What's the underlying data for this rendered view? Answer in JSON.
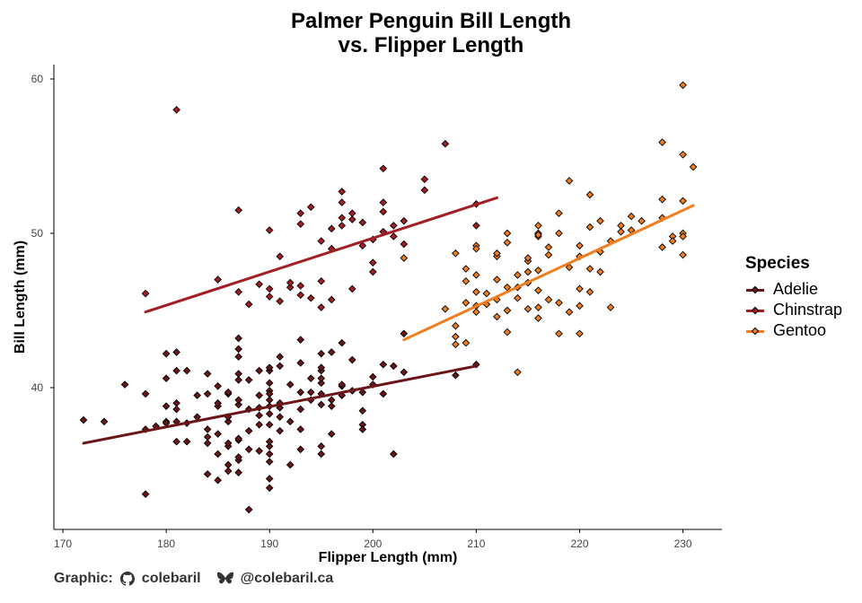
{
  "chart_data": {
    "type": "scatter",
    "title_line1": "Palmer Penguin Bill Length",
    "title_line2": "vs. Flipper Length",
    "xlabel": "Flipper Length (mm)",
    "ylabel": "Bill Length (mm)",
    "xlim": [
      169,
      234
    ],
    "ylim": [
      31,
      61
    ],
    "x_ticks": [
      170,
      180,
      190,
      200,
      210,
      220,
      230
    ],
    "y_ticks": [
      40,
      50,
      60
    ],
    "grid": false,
    "legend_title": "Species",
    "legend_position": "right",
    "series": [
      {
        "name": "Adelie",
        "color": "#6B1518",
        "points": [
          [
            172,
            37.9
          ],
          [
            174,
            37.8
          ],
          [
            176,
            40.2
          ],
          [
            178,
            33.1
          ],
          [
            178,
            39.6
          ],
          [
            178,
            37.3
          ],
          [
            179,
            37.5
          ],
          [
            180,
            37.8
          ],
          [
            180,
            38.8
          ],
          [
            180,
            40.6
          ],
          [
            180,
            37.7
          ],
          [
            180,
            42.2
          ],
          [
            181,
            41.1
          ],
          [
            181,
            36.5
          ],
          [
            181,
            38.6
          ],
          [
            181,
            39.0
          ],
          [
            181,
            37.8
          ],
          [
            181,
            42.3
          ],
          [
            182,
            41.1
          ],
          [
            182,
            36.5
          ],
          [
            182,
            37.7
          ],
          [
            183,
            38.1
          ],
          [
            183,
            39.5
          ],
          [
            184,
            40.9
          ],
          [
            184,
            36.8
          ],
          [
            184,
            37.3
          ],
          [
            184,
            34.4
          ],
          [
            184,
            39.6
          ],
          [
            184,
            36.4
          ],
          [
            185,
            40.1
          ],
          [
            185,
            38.8
          ],
          [
            185,
            34.0
          ],
          [
            185,
            35.7
          ],
          [
            185,
            37.0
          ],
          [
            185,
            39.0
          ],
          [
            186,
            36.2
          ],
          [
            186,
            39.6
          ],
          [
            186,
            36.4
          ],
          [
            186,
            37.8
          ],
          [
            186,
            38.1
          ],
          [
            186,
            35.0
          ],
          [
            186,
            39.7
          ],
          [
            186,
            34.6
          ],
          [
            187,
            36.6
          ],
          [
            187,
            42.0
          ],
          [
            187,
            35.3
          ],
          [
            187,
            38.9
          ],
          [
            187,
            34.5
          ],
          [
            187,
            40.5
          ],
          [
            187,
            43.2
          ],
          [
            187,
            40.9
          ],
          [
            187,
            39.2
          ],
          [
            187,
            36.7
          ],
          [
            187,
            35.5
          ],
          [
            187,
            42.5
          ],
          [
            188,
            37.2
          ],
          [
            188,
            40.5
          ],
          [
            188,
            38.6
          ],
          [
            188,
            36.0
          ],
          [
            188,
            32.1
          ],
          [
            189,
            41.1
          ],
          [
            189,
            35.9
          ],
          [
            189,
            39.5
          ],
          [
            189,
            38.2
          ],
          [
            189,
            37.6
          ],
          [
            189,
            38.7
          ],
          [
            190,
            40.3
          ],
          [
            190,
            34.1
          ],
          [
            190,
            36.2
          ],
          [
            190,
            38.3
          ],
          [
            190,
            39.2
          ],
          [
            190,
            35.2
          ],
          [
            190,
            41.1
          ],
          [
            190,
            38.8
          ],
          [
            190,
            33.5
          ],
          [
            190,
            36.5
          ],
          [
            190,
            37.6
          ],
          [
            190,
            41.3
          ],
          [
            190,
            39.8
          ],
          [
            190,
            35.7
          ],
          [
            190,
            39.6
          ],
          [
            191,
            38.1
          ],
          [
            191,
            37.2
          ],
          [
            191,
            38.7
          ],
          [
            191,
            41.4
          ],
          [
            191,
            39.0
          ],
          [
            191,
            42.0
          ],
          [
            192,
            40.2
          ],
          [
            192,
            37.8
          ],
          [
            192,
            35.0
          ],
          [
            193,
            38.6
          ],
          [
            193,
            39.7
          ],
          [
            193,
            37.3
          ],
          [
            193,
            41.6
          ],
          [
            193,
            36.0
          ],
          [
            193,
            43.1
          ],
          [
            194,
            39.2
          ],
          [
            194,
            39.7
          ],
          [
            194,
            40.6
          ],
          [
            195,
            40.3
          ],
          [
            195,
            41.1
          ],
          [
            195,
            42.2
          ],
          [
            195,
            38.9
          ],
          [
            195,
            39.6
          ],
          [
            195,
            40.6
          ],
          [
            195,
            36.2
          ],
          [
            195,
            41.3
          ],
          [
            195,
            35.7
          ],
          [
            196,
            38.8
          ],
          [
            196,
            42.3
          ],
          [
            196,
            39.2
          ],
          [
            196,
            37.0
          ],
          [
            197,
            40.1
          ],
          [
            197,
            39.5
          ],
          [
            197,
            42.9
          ],
          [
            197,
            40.2
          ],
          [
            198,
            41.8
          ],
          [
            198,
            39.8
          ],
          [
            199,
            37.6
          ],
          [
            199,
            39.7
          ],
          [
            199,
            37.3
          ],
          [
            199,
            38.5
          ],
          [
            200,
            40.7
          ],
          [
            200,
            40.2
          ],
          [
            201,
            41.5
          ],
          [
            201,
            39.6
          ],
          [
            202,
            35.7
          ],
          [
            202,
            41.4
          ],
          [
            203,
            41.0
          ],
          [
            203,
            43.5
          ],
          [
            208,
            40.8
          ],
          [
            210,
            41.5
          ]
        ],
        "trend": [
          [
            172,
            36.4
          ],
          [
            210,
            41.4
          ]
        ]
      },
      {
        "name": "Chinstrap",
        "color": "#A31E22",
        "points": [
          [
            178,
            46.1
          ],
          [
            181,
            58.0
          ],
          [
            185,
            47.0
          ],
          [
            187,
            51.5
          ],
          [
            187,
            46.2
          ],
          [
            188,
            45.4
          ],
          [
            189,
            46.7
          ],
          [
            190,
            46.4
          ],
          [
            190,
            50.2
          ],
          [
            190,
            45.9
          ],
          [
            191,
            48.5
          ],
          [
            191,
            45.6
          ],
          [
            192,
            46.5
          ],
          [
            192,
            46.8
          ],
          [
            193,
            46.0
          ],
          [
            193,
            46.6
          ],
          [
            193,
            50.6
          ],
          [
            193,
            51.3
          ],
          [
            194,
            45.8
          ],
          [
            194,
            51.7
          ],
          [
            195,
            45.2
          ],
          [
            195,
            46.9
          ],
          [
            195,
            49.5
          ],
          [
            196,
            45.7
          ],
          [
            196,
            49.0
          ],
          [
            196,
            50.3
          ],
          [
            197,
            52.0
          ],
          [
            197,
            51.0
          ],
          [
            197,
            52.7
          ],
          [
            197,
            50.5
          ],
          [
            198,
            51.3
          ],
          [
            198,
            50.9
          ],
          [
            198,
            46.4
          ],
          [
            199,
            49.2
          ],
          [
            199,
            50.7
          ],
          [
            200,
            47.5
          ],
          [
            200,
            48.1
          ],
          [
            200,
            49.6
          ],
          [
            201,
            50.1
          ],
          [
            201,
            51.4
          ],
          [
            201,
            52.0
          ],
          [
            201,
            54.2
          ],
          [
            202,
            50.5
          ],
          [
            202,
            49.8
          ],
          [
            203,
            50.8
          ],
          [
            203,
            49.3
          ],
          [
            205,
            52.8
          ],
          [
            205,
            53.5
          ],
          [
            207,
            55.8
          ],
          [
            210,
            51.9
          ],
          [
            210,
            50.5
          ]
        ],
        "trend": [
          [
            178,
            44.9
          ],
          [
            212,
            52.3
          ]
        ]
      },
      {
        "name": "Gentoo",
        "color": "#F07D1E",
        "points": [
          [
            203,
            48.4
          ],
          [
            207,
            45.1
          ],
          [
            208,
            43.3
          ],
          [
            208,
            42.8
          ],
          [
            208,
            48.7
          ],
          [
            208,
            44.0
          ],
          [
            209,
            45.5
          ],
          [
            209,
            46.9
          ],
          [
            209,
            47.7
          ],
          [
            209,
            42.9
          ],
          [
            210,
            45.3
          ],
          [
            210,
            49.2
          ],
          [
            210,
            47.3
          ],
          [
            210,
            46.2
          ],
          [
            210,
            44.9
          ],
          [
            210,
            49.0
          ],
          [
            211,
            45.4
          ],
          [
            211,
            46.1
          ],
          [
            212,
            45.7
          ],
          [
            212,
            47.0
          ],
          [
            212,
            48.5
          ],
          [
            212,
            44.6
          ],
          [
            212,
            48.7
          ],
          [
            213,
            43.6
          ],
          [
            213,
            45.0
          ],
          [
            213,
            46.5
          ],
          [
            213,
            50.0
          ],
          [
            213,
            49.4
          ],
          [
            214,
            46.5
          ],
          [
            214,
            45.8
          ],
          [
            214,
            41.0
          ],
          [
            214,
            47.3
          ],
          [
            215,
            48.2
          ],
          [
            215,
            47.5
          ],
          [
            215,
            46.8
          ],
          [
            215,
            45.1
          ],
          [
            215,
            48.4
          ],
          [
            216,
            47.6
          ],
          [
            216,
            49.8
          ],
          [
            216,
            45.2
          ],
          [
            216,
            46.3
          ],
          [
            216,
            50.0
          ],
          [
            216,
            44.5
          ],
          [
            216,
            49.9
          ],
          [
            216,
            50.5
          ],
          [
            217,
            45.7
          ],
          [
            217,
            48.6
          ],
          [
            217,
            49.1
          ],
          [
            218,
            43.5
          ],
          [
            218,
            50.0
          ],
          [
            218,
            45.5
          ],
          [
            218,
            51.3
          ],
          [
            219,
            44.9
          ],
          [
            219,
            47.8
          ],
          [
            219,
            53.4
          ],
          [
            220,
            45.3
          ],
          [
            220,
            48.5
          ],
          [
            220,
            46.4
          ],
          [
            220,
            43.5
          ],
          [
            220,
            49.2
          ],
          [
            221,
            47.7
          ],
          [
            221,
            50.4
          ],
          [
            221,
            46.2
          ],
          [
            221,
            52.5
          ],
          [
            222,
            50.8
          ],
          [
            222,
            48.8
          ],
          [
            222,
            47.5
          ],
          [
            223,
            49.5
          ],
          [
            223,
            45.2
          ],
          [
            224,
            50.5
          ],
          [
            224,
            50.1
          ],
          [
            225,
            51.1
          ],
          [
            225,
            50.2
          ],
          [
            226,
            50.8
          ],
          [
            228,
            51.0
          ],
          [
            228,
            52.2
          ],
          [
            228,
            49.1
          ],
          [
            228,
            55.9
          ],
          [
            229,
            49.8
          ],
          [
            229,
            49.5
          ],
          [
            230,
            50.0
          ],
          [
            230,
            48.6
          ],
          [
            230,
            49.8
          ],
          [
            230,
            52.1
          ],
          [
            230,
            55.1
          ],
          [
            230,
            59.6
          ],
          [
            231,
            54.3
          ]
        ],
        "trend": [
          [
            203,
            43.1
          ],
          [
            231,
            51.8
          ]
        ]
      }
    ]
  },
  "caption": {
    "label": "Graphic:",
    "github_handle": "colebaril",
    "bluesky_handle": "@colebaril.ca"
  }
}
